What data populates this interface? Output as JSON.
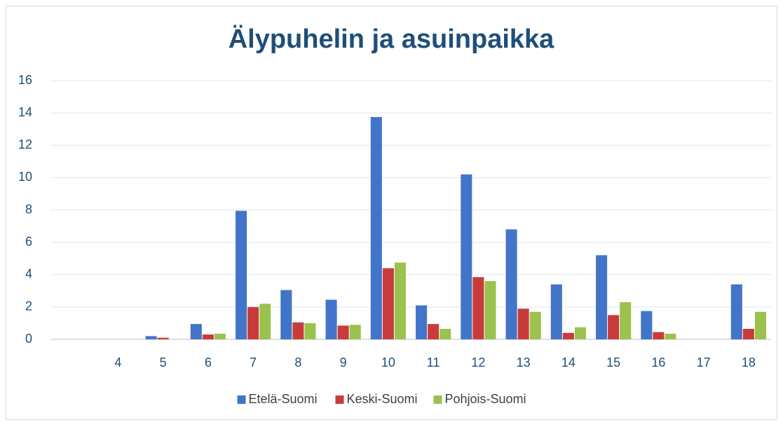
{
  "chart_data": {
    "type": "bar",
    "title": "Älypuhelin ja asuinpaikka",
    "categories": [
      null,
      "4",
      "5",
      "6",
      "7",
      "8",
      "9",
      "10",
      "11",
      "12",
      "13",
      "14",
      "15",
      "16",
      "17",
      "18"
    ],
    "series": [
      {
        "name": "Etelä-Suomi",
        "color": "#4275c9",
        "values": [
          0,
          0,
          0.2,
          0.95,
          7.95,
          3.05,
          2.45,
          13.75,
          2.1,
          10.2,
          6.8,
          3.4,
          5.2,
          1.75,
          0,
          3.4
        ]
      },
      {
        "name": "Keski-Suomi",
        "color": "#c93b3b",
        "values": [
          0,
          0,
          0.1,
          0.3,
          2.0,
          1.05,
          0.85,
          4.4,
          0.95,
          3.85,
          1.9,
          0.4,
          1.5,
          0.45,
          0,
          0.65
        ]
      },
      {
        "name": "Pohjois-Suomi",
        "color": "#9bc24e",
        "values": [
          0,
          0,
          0,
          0.35,
          2.2,
          1.0,
          0.9,
          4.75,
          0.65,
          3.6,
          1.7,
          0.75,
          2.3,
          0.35,
          0,
          1.7
        ]
      }
    ],
    "ylim": [
      0,
      16
    ],
    "yticks": [
      0,
      2,
      4,
      6,
      8,
      10,
      12,
      14,
      16
    ],
    "grid": true,
    "legend": "bottom"
  }
}
